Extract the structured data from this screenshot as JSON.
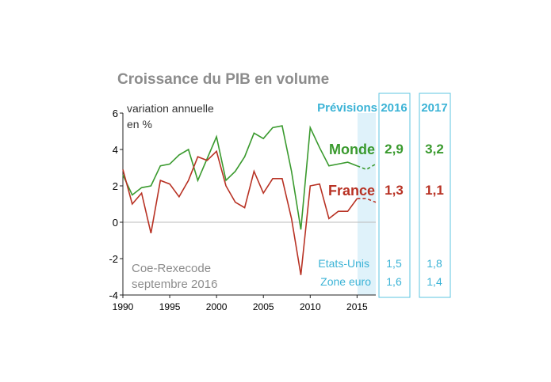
{
  "chart_data": {
    "type": "line",
    "title": "Croissance du PIB en volume",
    "ylabel_line1": "variation annuelle",
    "ylabel_line2": "en %",
    "ylim": [
      -4,
      6
    ],
    "yticks": [
      "6",
      "4",
      "2",
      "0",
      "-2",
      "-4"
    ],
    "xlim": [
      1990,
      2017
    ],
    "xticks": [
      "1990",
      "1995",
      "2000",
      "2005",
      "2010",
      "2015"
    ],
    "forecast_from": 2015,
    "series": [
      {
        "name": "Monde",
        "color": "#3a9a2e",
        "x": [
          1990,
          1991,
          1992,
          1993,
          1994,
          1995,
          1996,
          1997,
          1998,
          1999,
          2000,
          2001,
          2002,
          2003,
          2004,
          2005,
          2006,
          2007,
          2008,
          2009,
          2010,
          2011,
          2012,
          2013,
          2014,
          2015,
          2016,
          2017
        ],
        "y": [
          2.6,
          1.5,
          1.9,
          2.0,
          3.1,
          3.2,
          3.7,
          4.0,
          2.3,
          3.5,
          4.7,
          2.3,
          2.8,
          3.6,
          4.9,
          4.6,
          5.2,
          5.3,
          2.8,
          -0.4,
          5.2,
          4.1,
          3.1,
          3.2,
          3.3,
          3.1,
          2.9,
          3.2
        ]
      },
      {
        "name": "France",
        "color": "#b83224",
        "x": [
          1990,
          1991,
          1992,
          1993,
          1994,
          1995,
          1996,
          1997,
          1998,
          1999,
          2000,
          2001,
          2002,
          2003,
          2004,
          2005,
          2006,
          2007,
          2008,
          2009,
          2010,
          2011,
          2012,
          2013,
          2014,
          2015,
          2016,
          2017
        ],
        "y": [
          2.9,
          1.0,
          1.6,
          -0.6,
          2.3,
          2.1,
          1.4,
          2.3,
          3.6,
          3.4,
          3.9,
          2.0,
          1.1,
          0.8,
          2.8,
          1.6,
          2.4,
          2.4,
          0.2,
          -2.9,
          2.0,
          2.1,
          0.2,
          0.6,
          0.6,
          1.3,
          1.3,
          1.1
        ]
      }
    ],
    "forecast_header": "Prévisions",
    "forecasts": {
      "years": [
        "2016",
        "2017"
      ],
      "rows": [
        {
          "name": "Monde",
          "values": [
            "2,9",
            "3,2"
          ]
        },
        {
          "name": "France",
          "values": [
            "1,3",
            "1,1"
          ]
        },
        {
          "name": "Etats-Unis",
          "values": [
            "1,5",
            "1,8"
          ]
        },
        {
          "name": "Zone euro",
          "values": [
            "1,6",
            "1,4"
          ]
        }
      ]
    },
    "source_line1": "Coe-Rexecode",
    "source_line2": "septembre 2016"
  }
}
